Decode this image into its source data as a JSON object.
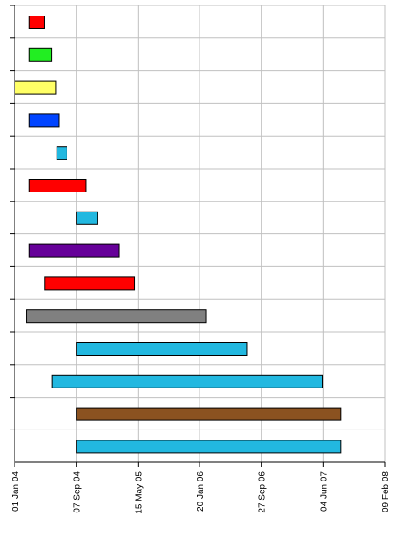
{
  "chart_data": {
    "type": "gantt",
    "title": "",
    "xlabel": "",
    "ylabel": "",
    "x_axis": {
      "min": "2004-01-01",
      "max": "2008-02-09",
      "ticks": [
        {
          "date": "2004-01-01",
          "label": "01 Jan 04"
        },
        {
          "date": "2004-09-07",
          "label": "07 Sep 04"
        },
        {
          "date": "2005-05-15",
          "label": "15 May 05"
        },
        {
          "date": "2006-01-20",
          "label": "20 Jan 06"
        },
        {
          "date": "2006-09-27",
          "label": "27 Sep 06"
        },
        {
          "date": "2007-06-04",
          "label": "04 Jun 07"
        },
        {
          "date": "2008-02-09",
          "label": "09 Feb 08"
        }
      ]
    },
    "grid": true,
    "legend": "none",
    "rows": [
      {
        "start": "2004-03-01",
        "end": "2004-04-30",
        "color": "#ff0000"
      },
      {
        "start": "2004-03-01",
        "end": "2004-05-30",
        "color": "#22ee22"
      },
      {
        "start": "2004-01-01",
        "end": "2004-06-15",
        "color": "#ffff66"
      },
      {
        "start": "2004-03-01",
        "end": "2004-06-30",
        "color": "#0044ff"
      },
      {
        "start": "2004-06-20",
        "end": "2004-07-31",
        "color": "#22b8e0"
      },
      {
        "start": "2004-03-01",
        "end": "2004-10-15",
        "color": "#ff0000"
      },
      {
        "start": "2004-09-07",
        "end": "2004-12-01",
        "color": "#22b8e0"
      },
      {
        "start": "2004-03-01",
        "end": "2005-03-01",
        "color": "#660099"
      },
      {
        "start": "2004-05-01",
        "end": "2005-05-01",
        "color": "#ff0000"
      },
      {
        "start": "2004-02-20",
        "end": "2006-02-15",
        "color": "#808080"
      },
      {
        "start": "2004-09-07",
        "end": "2006-07-31",
        "color": "#22b8e0"
      },
      {
        "start": "2004-06-01",
        "end": "2007-06-01",
        "color": "#22b8e0"
      },
      {
        "start": "2004-09-07",
        "end": "2007-08-15",
        "color": "#8b5220"
      },
      {
        "start": "2004-09-07",
        "end": "2007-08-15",
        "color": "#22b8e0"
      }
    ]
  }
}
